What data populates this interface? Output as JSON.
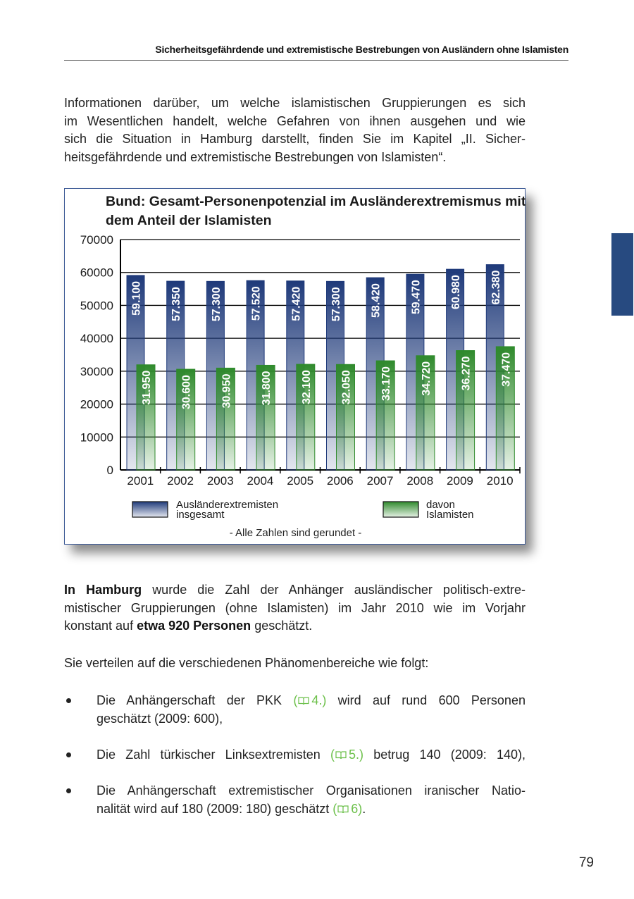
{
  "header": "Sicherheitsgefährdende und extremistische Bestrebungen von Ausländern ohne Islamisten",
  "intro": [
    "Informationen darüber, um welche islamistischen Gruppierungen es sich",
    "im Wesentlichen handelt, welche Gefahren von ihnen ausgehen und wie",
    "sich die Situation in Hamburg darstellt, finden Sie im Kapitel „II. Sicher-",
    "heitsgefährdende und extremistische Bestrebungen von Islamisten“."
  ],
  "chart_data": {
    "type": "bar",
    "title": "Bund: Gesamt-Personenpotenzial im Ausländerextremismus mit dem Anteil der Islamisten",
    "categories": [
      "2001",
      "2002",
      "2003",
      "2004",
      "2005",
      "2006",
      "2007",
      "2008",
      "2009",
      "2010"
    ],
    "series": [
      {
        "name": "Ausländerextremisten insgesamt",
        "color": "#1f3a7a",
        "values": [
          59100,
          57350,
          57300,
          57520,
          57420,
          57300,
          58420,
          59470,
          60980,
          62380
        ],
        "value_labels": [
          "59.100",
          "57.350",
          "57.300",
          "57.520",
          "57.420",
          "57.300",
          "58.420",
          "59.470",
          "60.980",
          "62.380"
        ]
      },
      {
        "name": "davon Islamisten",
        "color": "#2f8a2c",
        "values": [
          31950,
          30600,
          30950,
          31800,
          32100,
          32050,
          33170,
          34720,
          36270,
          37470
        ],
        "value_labels": [
          "31.950",
          "30.600",
          "30.950",
          "31.800",
          "32.100",
          "32.050",
          "33.170",
          "34.720",
          "36.270",
          "37.470"
        ]
      }
    ],
    "ylim": [
      0,
      70000
    ],
    "yticks": [
      0,
      10000,
      20000,
      30000,
      40000,
      50000,
      60000,
      70000
    ],
    "grid": true,
    "note": "- Alle Zahlen sind gerundet -"
  },
  "hamburg": {
    "line1": [
      "In Hamburg",
      "wurde die Zahl der Anhänger ausländischer politisch-extre-"
    ],
    "line2": "mistischer Gruppierungen (ohne Islamisten) im Jahr 2010 wie im Vorjahr",
    "line3": [
      "konstant auf",
      "etwa 920 Personen",
      "geschätzt."
    ]
  },
  "phenomena": "Sie verteilen auf die verschiedenen Phänomenbereiche wie folgt:",
  "bullets": [
    {
      "line1": [
        "Die Anhängerschaft der PKK",
        "(",
        "4.)",
        "wird  auf rund 600 Personen"
      ],
      "line2": "geschätzt (2009: 600),"
    },
    {
      "line1": [
        "Die Zahl türkischer Linksextremisten",
        "(",
        "5.)",
        "betrug 140 (2009: 140),"
      ]
    },
    {
      "line1": "Die Anhängerschaft extremistischer Organisationen iranischer Natio-",
      "line2": [
        "nalität wird auf 180 (2009: 180) geschätzt",
        "(",
        "6)",
        "."
      ]
    }
  ],
  "page_number": "79"
}
